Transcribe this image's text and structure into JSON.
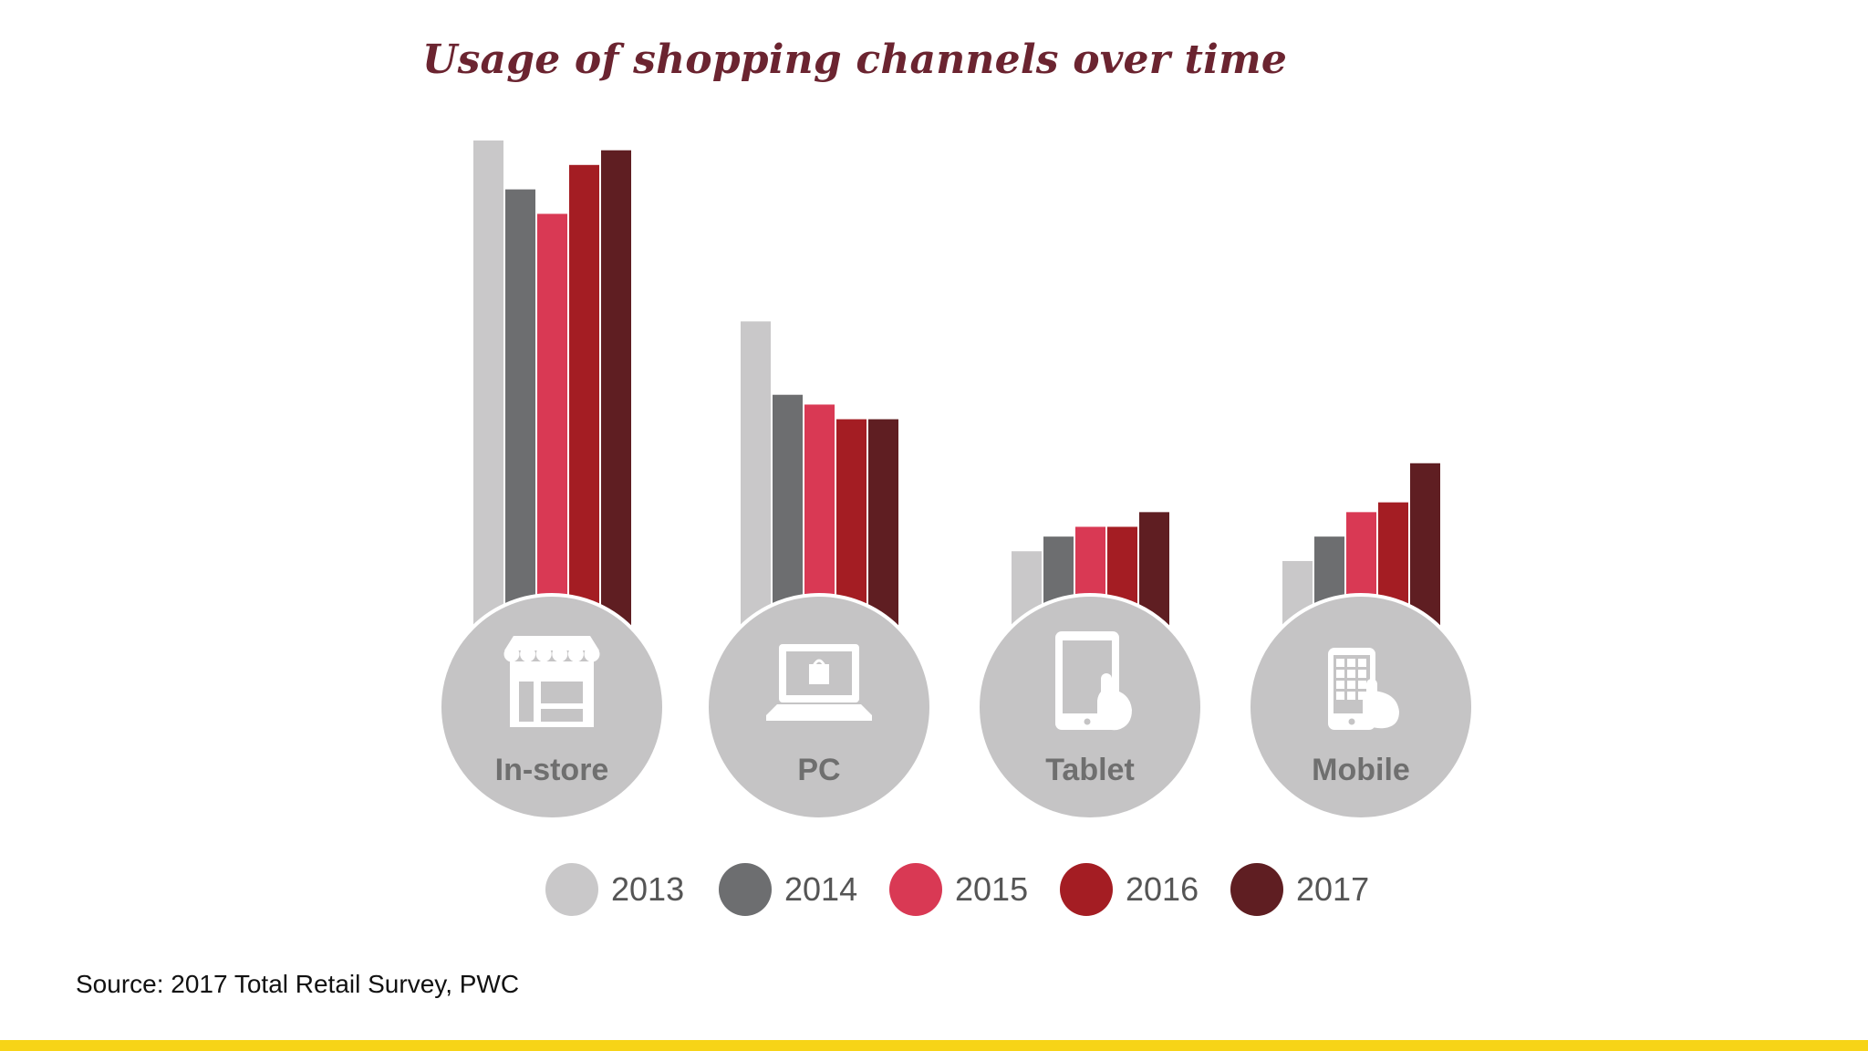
{
  "chart_data": {
    "type": "bar",
    "title": "Usage of shopping channels over time",
    "categories": [
      "In-store",
      "PC",
      "Tablet",
      "Mobile"
    ],
    "category_icons": [
      "store-icon",
      "laptop-icon",
      "tablet-icon",
      "mobile-phone-icon"
    ],
    "series": [
      {
        "name": "2013",
        "color": "#c9c8c9",
        "values": [
          100,
          63,
          16,
          14
        ]
      },
      {
        "name": "2014",
        "color": "#6d6e70",
        "values": [
          90,
          48,
          19,
          19
        ]
      },
      {
        "name": "2015",
        "color": "#d93954",
        "values": [
          85,
          46,
          21,
          24
        ]
      },
      {
        "name": "2016",
        "color": "#a41d23",
        "values": [
          95,
          43,
          21,
          26
        ]
      },
      {
        "name": "2017",
        "color": "#5f1e22",
        "values": [
          98,
          43,
          24,
          34
        ]
      }
    ],
    "ylim": [
      0,
      100
    ],
    "axes_visible": false,
    "grid": false,
    "legend_position": "bottom"
  },
  "source": "Source: 2017 Total Retail Survey, PWC",
  "colors": {
    "title": "#6b2430",
    "icon_disc": "#c5c4c5",
    "icon_glyph": "#ffffff",
    "accent_bar": "#f7d417"
  }
}
